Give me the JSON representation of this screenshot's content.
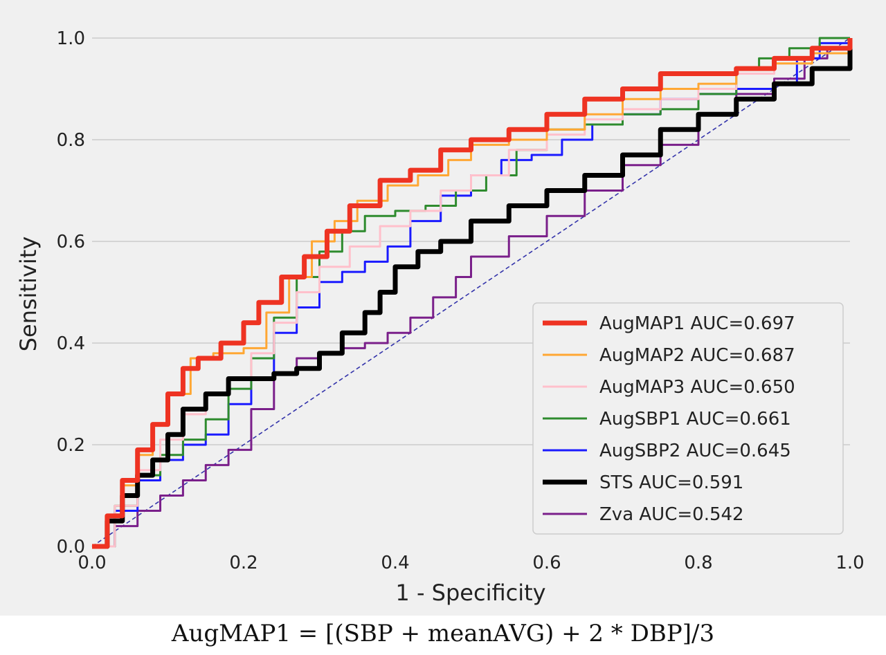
{
  "chart_data": {
    "type": "line",
    "title": "",
    "xlabel": "1 - Specificity",
    "ylabel": "Sensitivity",
    "xlim": [
      0,
      1
    ],
    "ylim": [
      0,
      1
    ],
    "xticks": [
      "0.0",
      "0.2",
      "0.4",
      "0.6",
      "0.8",
      "1.0"
    ],
    "yticks": [
      "0.0",
      "0.2",
      "0.4",
      "0.6",
      "0.8",
      "1.0"
    ],
    "grid": "horizontal",
    "legend_position": "bottom-right",
    "background": "#f0f0f0",
    "series": [
      {
        "name": "AugMAP1 AUC=0.697",
        "color": "#ee3322",
        "x": [
          0,
          0.02,
          0.04,
          0.06,
          0.08,
          0.1,
          0.12,
          0.14,
          0.17,
          0.2,
          0.22,
          0.25,
          0.28,
          0.31,
          0.34,
          0.38,
          0.42,
          0.46,
          0.5,
          0.55,
          0.6,
          0.65,
          0.7,
          0.75,
          0.8,
          0.85,
          0.9,
          0.95,
          1.0
        ],
        "y": [
          0,
          0.06,
          0.13,
          0.19,
          0.24,
          0.3,
          0.35,
          0.37,
          0.4,
          0.44,
          0.48,
          0.53,
          0.57,
          0.62,
          0.67,
          0.72,
          0.74,
          0.78,
          0.8,
          0.82,
          0.85,
          0.88,
          0.9,
          0.93,
          0.93,
          0.94,
          0.96,
          0.98,
          1.0
        ]
      },
      {
        "name": "AugMAP2 AUC=0.687",
        "color": "#ffa733",
        "x": [
          0,
          0.02,
          0.04,
          0.06,
          0.08,
          0.1,
          0.13,
          0.16,
          0.2,
          0.23,
          0.26,
          0.29,
          0.32,
          0.35,
          0.39,
          0.43,
          0.47,
          0.5,
          0.55,
          0.6,
          0.65,
          0.7,
          0.75,
          0.8,
          0.85,
          0.9,
          0.95,
          1.0
        ],
        "y": [
          0,
          0.05,
          0.12,
          0.18,
          0.24,
          0.3,
          0.37,
          0.38,
          0.39,
          0.46,
          0.53,
          0.6,
          0.64,
          0.68,
          0.71,
          0.73,
          0.76,
          0.79,
          0.8,
          0.82,
          0.85,
          0.88,
          0.9,
          0.91,
          0.94,
          0.95,
          0.97,
          1.0
        ]
      },
      {
        "name": "AugMAP3 AUC=0.650",
        "color": "#ffc0cb",
        "x": [
          0,
          0.03,
          0.06,
          0.09,
          0.12,
          0.15,
          0.18,
          0.21,
          0.24,
          0.27,
          0.3,
          0.34,
          0.38,
          0.42,
          0.46,
          0.5,
          0.55,
          0.6,
          0.65,
          0.7,
          0.75,
          0.8,
          0.85,
          0.9,
          0.95,
          1.0
        ],
        "y": [
          0,
          0.08,
          0.15,
          0.21,
          0.26,
          0.3,
          0.33,
          0.38,
          0.44,
          0.5,
          0.55,
          0.59,
          0.63,
          0.66,
          0.7,
          0.73,
          0.78,
          0.81,
          0.84,
          0.86,
          0.88,
          0.9,
          0.93,
          0.95,
          0.97,
          1.0
        ]
      },
      {
        "name": "AugSBP1 AUC=0.661",
        "color": "#2e8b2e",
        "x": [
          0,
          0.03,
          0.06,
          0.09,
          0.12,
          0.15,
          0.18,
          0.21,
          0.24,
          0.27,
          0.3,
          0.33,
          0.36,
          0.4,
          0.44,
          0.48,
          0.52,
          0.56,
          0.6,
          0.65,
          0.7,
          0.75,
          0.8,
          0.85,
          0.88,
          0.92,
          0.96,
          1.0
        ],
        "y": [
          0,
          0.08,
          0.14,
          0.18,
          0.21,
          0.25,
          0.31,
          0.37,
          0.45,
          0.53,
          0.58,
          0.62,
          0.65,
          0.66,
          0.67,
          0.7,
          0.73,
          0.78,
          0.82,
          0.83,
          0.85,
          0.86,
          0.89,
          0.94,
          0.96,
          0.98,
          1.0,
          1.0
        ]
      },
      {
        "name": "AugSBP2 AUC=0.645",
        "color": "#1a1aff",
        "x": [
          0,
          0.03,
          0.06,
          0.09,
          0.12,
          0.15,
          0.18,
          0.21,
          0.24,
          0.27,
          0.3,
          0.33,
          0.36,
          0.39,
          0.42,
          0.46,
          0.5,
          0.54,
          0.58,
          0.62,
          0.66,
          0.7,
          0.75,
          0.8,
          0.85,
          0.9,
          0.93,
          0.96,
          1.0
        ],
        "y": [
          0,
          0.07,
          0.13,
          0.17,
          0.2,
          0.22,
          0.28,
          0.33,
          0.42,
          0.47,
          0.52,
          0.54,
          0.56,
          0.59,
          0.64,
          0.69,
          0.73,
          0.76,
          0.77,
          0.8,
          0.83,
          0.85,
          0.88,
          0.89,
          0.9,
          0.91,
          0.96,
          0.99,
          1.0
        ]
      },
      {
        "name": "STS AUC=0.591",
        "color": "#000000",
        "x": [
          0,
          0.02,
          0.04,
          0.06,
          0.08,
          0.1,
          0.12,
          0.15,
          0.18,
          0.21,
          0.24,
          0.27,
          0.3,
          0.33,
          0.36,
          0.38,
          0.4,
          0.43,
          0.46,
          0.5,
          0.55,
          0.6,
          0.65,
          0.7,
          0.75,
          0.8,
          0.85,
          0.9,
          0.95,
          1.0
        ],
        "y": [
          0,
          0.05,
          0.1,
          0.14,
          0.17,
          0.22,
          0.27,
          0.3,
          0.33,
          0.33,
          0.34,
          0.35,
          0.38,
          0.42,
          0.46,
          0.5,
          0.55,
          0.58,
          0.6,
          0.64,
          0.67,
          0.7,
          0.73,
          0.77,
          0.82,
          0.85,
          0.88,
          0.91,
          0.94,
          1.0
        ]
      },
      {
        "name": "Zva AUC=0.542",
        "color": "#7a1f8a",
        "x": [
          0,
          0.03,
          0.06,
          0.09,
          0.12,
          0.15,
          0.18,
          0.21,
          0.24,
          0.27,
          0.3,
          0.33,
          0.36,
          0.39,
          0.42,
          0.45,
          0.48,
          0.5,
          0.55,
          0.6,
          0.65,
          0.7,
          0.75,
          0.8,
          0.85,
          0.9,
          0.94,
          0.97,
          1.0
        ],
        "y": [
          0,
          0.04,
          0.07,
          0.1,
          0.13,
          0.16,
          0.19,
          0.27,
          0.34,
          0.37,
          0.38,
          0.39,
          0.4,
          0.42,
          0.45,
          0.49,
          0.53,
          0.57,
          0.61,
          0.65,
          0.7,
          0.75,
          0.79,
          0.85,
          0.89,
          0.92,
          0.96,
          0.98,
          1.0
        ]
      }
    ],
    "reference_line": {
      "x": [
        0,
        1
      ],
      "y": [
        0,
        1
      ],
      "color": "#3333aa",
      "style": "dashed"
    }
  },
  "formula": "AugMAP1 = [(SBP + meanAVG) + 2 * DBP]/3"
}
